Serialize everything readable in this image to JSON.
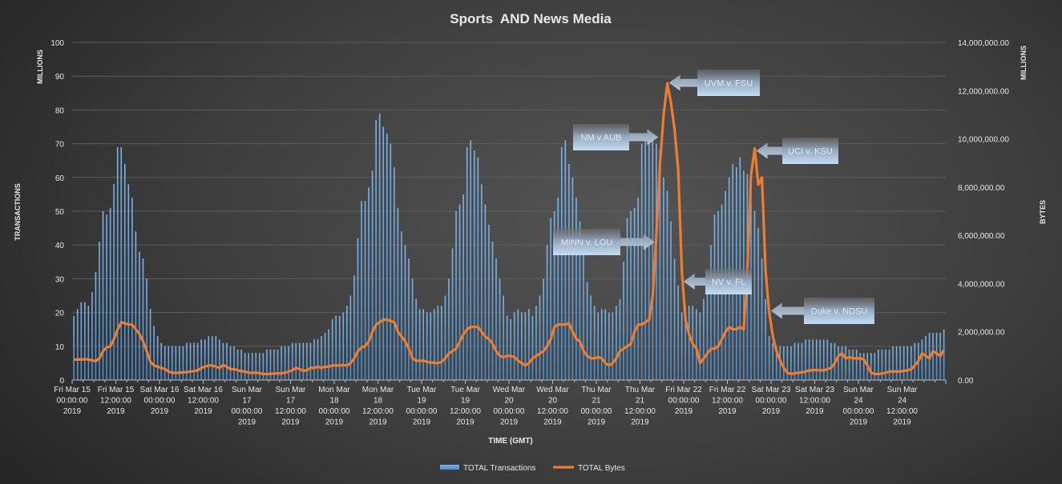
{
  "chart_data": {
    "type": "bar+line",
    "title": "Sports  AND News Media",
    "xlabel": "TIME (GMT)",
    "ylabel_left": "TRANSACTIONS",
    "ylabel_left_unit": "MILLIONS",
    "ylabel_right": "BYTES",
    "ylabel_right_unit": "MILLIONS",
    "ylim_left": [
      0,
      100
    ],
    "ylim_right": [
      0,
      14000000
    ],
    "yticks_left": [
      "0",
      "10",
      "20",
      "30",
      "40",
      "50",
      "60",
      "70",
      "80",
      "90",
      "100"
    ],
    "yticks_right": [
      "0.00",
      "2,000,000.00",
      "4,000,000.00",
      "6,000,000.00",
      "8,000,000.00",
      "10,000,000.00",
      "12,000,000.00",
      "14,000,000.00"
    ],
    "grid": true,
    "legend_position": "bottom",
    "x_interval": "hourly",
    "x_tick_labels": [
      [
        "Fri Mar 15",
        "00:00:00",
        "2019"
      ],
      [
        "Fri Mar 15",
        "12:00:00",
        "2019"
      ],
      [
        "Sat Mar 16",
        "00:00:00",
        "2019"
      ],
      [
        "Sat Mar 16",
        "12:00:00",
        "2019"
      ],
      [
        "Sun Mar",
        "17",
        "00:00:00",
        "2019"
      ],
      [
        "Sun Mar",
        "17",
        "12:00:00",
        "2019"
      ],
      [
        "Mon Mar",
        "18",
        "00:00:00",
        "2019"
      ],
      [
        "Mon Mar",
        "18",
        "12:00:00",
        "2019"
      ],
      [
        "Tue Mar",
        "19",
        "00:00:00",
        "2019"
      ],
      [
        "Tue Mar",
        "19",
        "12:00:00",
        "2019"
      ],
      [
        "Wed Mar",
        "20",
        "00:00:00",
        "2019"
      ],
      [
        "Wed Mar",
        "20",
        "12:00:00",
        "2019"
      ],
      [
        "Thu Mar",
        "21",
        "00:00:00",
        "2019"
      ],
      [
        "Thu Mar",
        "21",
        "12:00:00",
        "2019"
      ],
      [
        "Fri Mar 22",
        "00:00:00",
        "2019"
      ],
      [
        "Fri Mar 22",
        "12:00:00",
        "2019"
      ],
      [
        "Sat Mar 23",
        "00:00:00",
        "2019"
      ],
      [
        "Sat Mar 23",
        "12:00:00",
        "2019"
      ],
      [
        "Sun Mar",
        "24",
        "00:00:00",
        "2019"
      ],
      [
        "Sun Mar",
        "24",
        "12:00:00",
        "2019"
      ]
    ],
    "series": [
      {
        "name": "TOTAL Transactions",
        "type": "bar",
        "axis": "left",
        "color": "#5b9bd5",
        "unit": "millions",
        "values": [
          19,
          21,
          23,
          23,
          22,
          26,
          32,
          41,
          50,
          49,
          51,
          58,
          69,
          69,
          64,
          58,
          54,
          44,
          38,
          36,
          30,
          21,
          16,
          13,
          11,
          10,
          10,
          10,
          10,
          10,
          10,
          11,
          11,
          11,
          11,
          12,
          12,
          13,
          13,
          13,
          12,
          11,
          11,
          10,
          10,
          9,
          9,
          8,
          8,
          8,
          8,
          8,
          8,
          9,
          9,
          9,
          9,
          10,
          10,
          10,
          11,
          11,
          11,
          11,
          11,
          11,
          12,
          12,
          13,
          14,
          15,
          18,
          19,
          19,
          20,
          22,
          25,
          31,
          42,
          53,
          53,
          57,
          62,
          77,
          79,
          75,
          73,
          70,
          63,
          51,
          44,
          40,
          36,
          30,
          24,
          21,
          21,
          20,
          20,
          21,
          22,
          22,
          25,
          30,
          39,
          50,
          52,
          55,
          69,
          71,
          68,
          66,
          58,
          52,
          46,
          41,
          36,
          30,
          25,
          19,
          18,
          20,
          21,
          20,
          20,
          21,
          19,
          22,
          25,
          30,
          40,
          48,
          50,
          54,
          69,
          71,
          64,
          60,
          54,
          47,
          40,
          29,
          25,
          22,
          20,
          21,
          21,
          20,
          20,
          22,
          24,
          35,
          48,
          50,
          51,
          54,
          70,
          73,
          72,
          71,
          70,
          68,
          60,
          56,
          47,
          36,
          28,
          20,
          22,
          22,
          22,
          21,
          20,
          24,
          30,
          40,
          49,
          50,
          52,
          56,
          60,
          64,
          63,
          66,
          62,
          61,
          58,
          50,
          45,
          36,
          24,
          13,
          11,
          10,
          10,
          10,
          10,
          10,
          11,
          11,
          11,
          12,
          12,
          12,
          12,
          12,
          12,
          12,
          11,
          11,
          10,
          10,
          10,
          9,
          9,
          9,
          8,
          8,
          8,
          8,
          8,
          9,
          9,
          9,
          9,
          10,
          10,
          10,
          10,
          10,
          10,
          11,
          11,
          12,
          13,
          14,
          14,
          14,
          14,
          15
        ]
      },
      {
        "name": "TOTAL Bytes",
        "type": "line",
        "axis": "right",
        "color": "#ed7d31",
        "unit": "millions",
        "values": [
          0.85,
          0.85,
          0.85,
          0.87,
          0.85,
          0.82,
          0.78,
          0.9,
          1.2,
          1.35,
          1.4,
          1.7,
          2.1,
          2.4,
          2.35,
          2.3,
          2.3,
          2.1,
          1.9,
          1.6,
          1.2,
          0.75,
          0.6,
          0.55,
          0.5,
          0.45,
          0.35,
          0.3,
          0.3,
          0.3,
          0.32,
          0.33,
          0.35,
          0.37,
          0.4,
          0.5,
          0.55,
          0.6,
          0.6,
          0.55,
          0.5,
          0.62,
          0.55,
          0.45,
          0.45,
          0.4,
          0.37,
          0.35,
          0.3,
          0.3,
          0.3,
          0.28,
          0.25,
          0.25,
          0.25,
          0.27,
          0.27,
          0.28,
          0.3,
          0.35,
          0.4,
          0.5,
          0.45,
          0.38,
          0.4,
          0.5,
          0.5,
          0.55,
          0.5,
          0.55,
          0.55,
          0.6,
          0.6,
          0.6,
          0.62,
          0.6,
          0.7,
          0.9,
          1.2,
          1.35,
          1.4,
          1.6,
          2.0,
          2.3,
          2.4,
          2.5,
          2.5,
          2.45,
          2.4,
          2.0,
          1.8,
          1.6,
          1.3,
          0.9,
          0.8,
          0.8,
          0.8,
          0.75,
          0.72,
          0.72,
          0.7,
          0.75,
          0.9,
          1.1,
          1.2,
          1.3,
          1.6,
          1.9,
          2.1,
          2.2,
          2.2,
          2.2,
          2.0,
          1.8,
          1.7,
          1.5,
          1.2,
          1.0,
          0.95,
          1.0,
          1.0,
          0.95,
          0.8,
          0.7,
          0.6,
          0.7,
          0.9,
          1.0,
          1.1,
          1.2,
          1.4,
          1.7,
          2.2,
          2.3,
          2.3,
          2.3,
          2.35,
          2.0,
          1.7,
          1.6,
          1.2,
          1.0,
          0.9,
          0.9,
          0.95,
          0.9,
          0.7,
          0.6,
          0.7,
          0.9,
          1.2,
          1.3,
          1.4,
          1.5,
          2.0,
          2.3,
          2.3,
          2.4,
          2.5,
          3.5,
          6.0,
          9.0,
          11.0,
          12.3,
          11.5,
          10.4,
          8.7,
          4.5,
          2.5,
          1.9,
          1.5,
          1.3,
          0.7,
          0.9,
          1.1,
          1.3,
          1.3,
          1.4,
          1.7,
          2.0,
          2.2,
          2.1,
          2.1,
          2.2,
          2.1,
          4.5,
          8.5,
          9.6,
          8.1,
          8.4,
          4.5,
          2.8,
          1.8,
          1.2,
          0.8,
          0.5,
          0.3,
          0.25,
          0.28,
          0.3,
          0.32,
          0.35,
          0.4,
          0.4,
          0.42,
          0.4,
          0.4,
          0.45,
          0.5,
          0.7,
          1.0,
          1.1,
          0.9,
          0.95,
          0.9,
          0.9,
          0.9,
          0.85,
          0.6,
          0.3,
          0.25,
          0.25,
          0.27,
          0.3,
          0.35,
          0.35,
          0.35,
          0.35,
          0.38,
          0.4,
          0.45,
          0.6,
          0.8,
          1.1,
          1.0,
          0.9,
          1.2,
          1.1,
          1.0,
          1.25
        ]
      }
    ],
    "annotations": [
      {
        "text": "UVM v. FSU",
        "hour": 163,
        "arrow": "left"
      },
      {
        "text": "NM v AUB",
        "hour": 161,
        "arrow": "right"
      },
      {
        "text": "MINN v. LOU",
        "hour": 160,
        "arrow": "right"
      },
      {
        "text": "NV v. FL",
        "hour": 167,
        "arrow": "left"
      },
      {
        "text": "UCI v. KSU",
        "hour": 187,
        "arrow": "left"
      },
      {
        "text": "Duke v. NDSU",
        "hour": 191,
        "arrow": "left"
      }
    ]
  }
}
